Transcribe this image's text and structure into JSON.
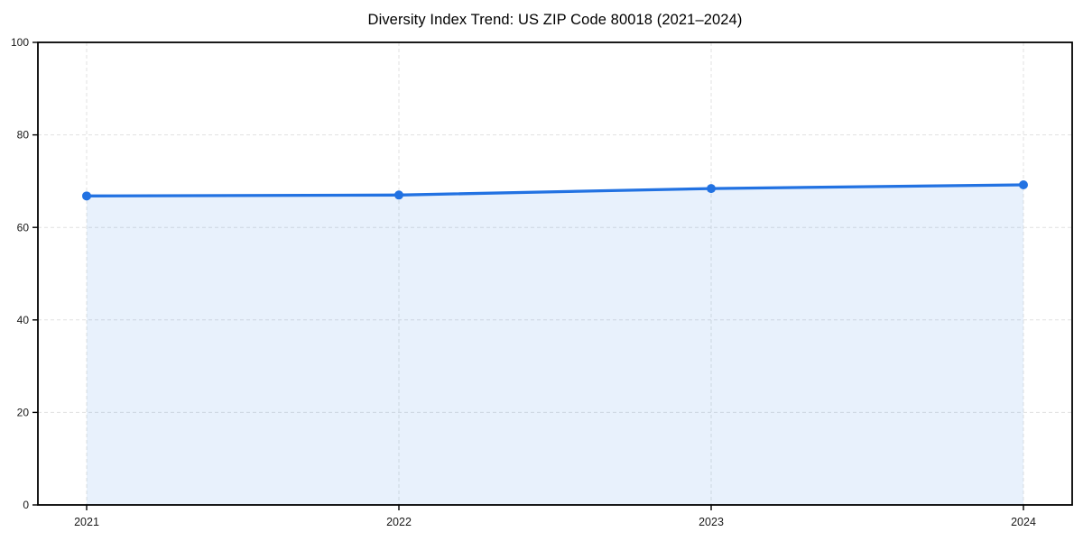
{
  "figure": {
    "background": "#ffffff"
  },
  "chart_data": {
    "type": "area",
    "title": "Diversity Index Trend: US ZIP Code 80018 (2021–2024)",
    "x": [
      "2021",
      "2022",
      "2023",
      "2024"
    ],
    "series": [
      {
        "name": "Diversity Index",
        "values": [
          66.8,
          67.0,
          68.4,
          69.2
        ]
      }
    ],
    "xlabel": "",
    "ylabel": "",
    "ylim": [
      0,
      100
    ],
    "yticks": [
      0,
      20,
      40,
      60,
      80,
      100
    ],
    "grid": true,
    "legend_position": "none",
    "style": {
      "line_color": "#2272e2",
      "marker_color": "#2272e2",
      "fill_color": "rgba(34,114,226,0.10)",
      "grid_color": "#dcdcdc",
      "axis_color": "#000000",
      "tick_color": "#000000",
      "tick_label_color": "#1a1a1a",
      "line_width": 3.3,
      "marker_radius": 5,
      "axis_width": 1.8
    }
  }
}
